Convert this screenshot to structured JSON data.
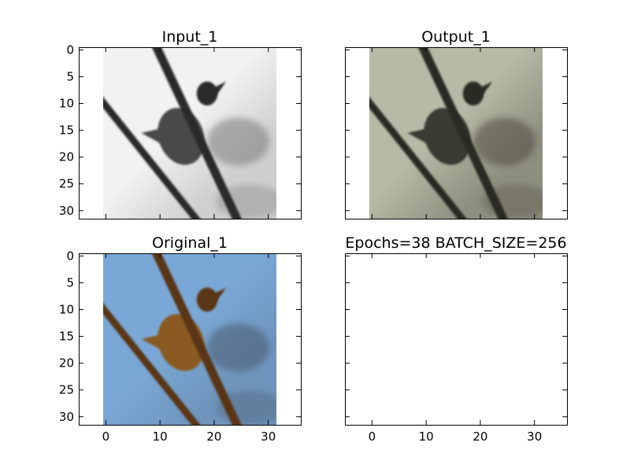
{
  "chart_data": [
    {
      "type": "image",
      "title": "Input_1",
      "image_kind": "grayscale",
      "xlim": [
        -5,
        36
      ],
      "ylim": [
        31.5,
        -0.5
      ],
      "yticks": [
        0,
        5,
        10,
        15,
        20,
        25,
        30
      ],
      "xticks": [],
      "yticklabels_visible": true,
      "xticklabels_visible": false,
      "palette": {
        "bg_light": "#f2f2f2",
        "bg_mid": "#cfcfcf",
        "bg_dark": "#7a7a7a",
        "branch": "#2a2a2a",
        "bird": "#4a4a4a"
      }
    },
    {
      "type": "image",
      "title": "Output_1",
      "image_kind": "color-reconstruction",
      "xlim": [
        -5,
        36
      ],
      "ylim": [
        31.5,
        -0.5
      ],
      "yticks": [
        0,
        5,
        10,
        15,
        20,
        25,
        30
      ],
      "xticks": [],
      "yticklabels_visible": false,
      "xticklabels_visible": false,
      "palette": {
        "bg_light": "#b9b9a8",
        "bg_mid": "#8f8f7f",
        "bg_dark": "#4f4c40",
        "branch": "#2b2a24",
        "bird": "#3a3a30"
      }
    },
    {
      "type": "image",
      "title": "Original_1",
      "image_kind": "color",
      "xlim": [
        -5,
        36
      ],
      "ylim": [
        31.5,
        -0.5
      ],
      "yticks": [
        0,
        5,
        10,
        15,
        20,
        25,
        30
      ],
      "xticks": [
        0,
        10,
        20,
        30
      ],
      "yticklabels_visible": true,
      "xticklabels_visible": true,
      "palette": {
        "bg_light": "#7aa8d6",
        "bg_mid": "#6f95bd",
        "bg_dark": "#4a5a6d",
        "branch": "#5a3418",
        "bird": "#8a5a22"
      }
    },
    {
      "type": "empty",
      "title": "Epochs=38 BATCH_SIZE=256",
      "xlim": [
        -5,
        36
      ],
      "ylim": [
        31.5,
        -0.5
      ],
      "yticks": [
        0,
        5,
        10,
        15,
        20,
        25,
        30
      ],
      "xticks": [
        0,
        10,
        20,
        30
      ],
      "yticklabels_visible": false,
      "xticklabels_visible": true
    }
  ]
}
